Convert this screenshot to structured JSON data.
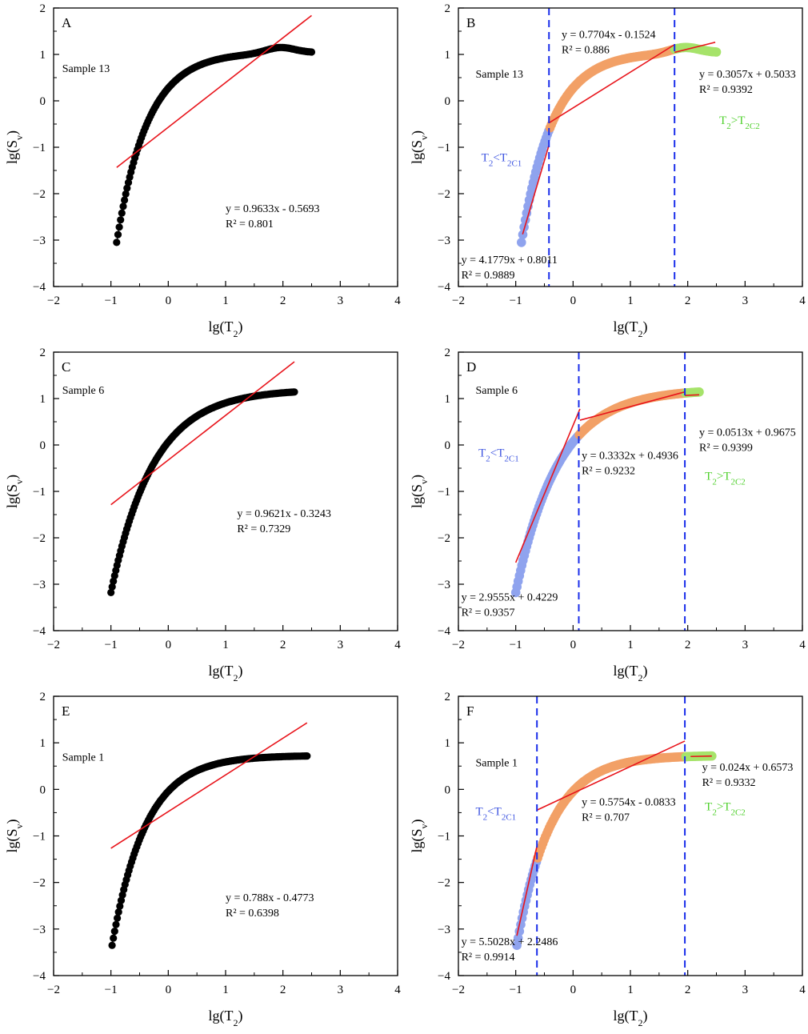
{
  "figure": {
    "panels": [
      "A",
      "B",
      "C",
      "D",
      "E",
      "F"
    ]
  },
  "colors": {
    "points_black": "#000000",
    "low_segment": "#8FA3EE",
    "mid_segment": "#F2A066",
    "high_segment": "#A6E36A",
    "fit_line": "#E8141B",
    "divider": "#1A2EEA",
    "label_low": "#3E55E0",
    "label_high": "#4FD02C"
  },
  "chart_data": [
    {
      "id": "A",
      "type": "scatter",
      "sample": "Sample 13",
      "xlabel": "lg(T2)",
      "ylabel": "lg(Sv)",
      "xlim": [
        -2,
        4
      ],
      "ylim": [
        -4,
        2
      ],
      "xticks": [
        "−2",
        "−1",
        "0",
        "1",
        "2",
        "3",
        "4"
      ],
      "yticks": [
        "−4",
        "−3",
        "−2",
        "−1",
        "0",
        "1",
        "2"
      ],
      "curve": {
        "x0": -0.9,
        "y0": -3.05,
        "x1": 2.5,
        "k": 1.85,
        "a": 0.35,
        "bump_center": 1.95,
        "bump_height": 0.12
      },
      "fits": [
        {
          "slope": 0.9633,
          "intercept": -0.5693,
          "x_from": -0.9,
          "x_to": 2.5,
          "equation": "y = 0.9633x - 0.5693",
          "r2": "R² = 0.801"
        }
      ],
      "dividers": []
    },
    {
      "id": "B",
      "type": "scatter",
      "sample": "Sample 13",
      "xlabel": "lg(T2)",
      "ylabel": "lg(Sv)",
      "xlim": [
        -2,
        4
      ],
      "ylim": [
        -4,
        2
      ],
      "xticks": [
        "−2",
        "−1",
        "0",
        "1",
        "2",
        "3",
        "4"
      ],
      "yticks": [
        "−4",
        "−3",
        "−2",
        "−1",
        "0",
        "1",
        "2"
      ],
      "curve": {
        "x0": -0.9,
        "y0": -3.05,
        "x1": 2.5,
        "k": 1.85,
        "a": 0.35,
        "bump_center": 1.95,
        "bump_height": 0.12
      },
      "dividers": [
        -0.42,
        1.77
      ],
      "regions": {
        "low": "T2<T2C1",
        "high": "T2>T2C2"
      },
      "fits": [
        {
          "slope": 4.1779,
          "intercept": 0.8011,
          "x_from": -0.88,
          "x_to": -0.42,
          "equation": "y = 4.1779x + 0.8011",
          "r2": "R² = 0.9889"
        },
        {
          "slope": 0.7704,
          "intercept": -0.1524,
          "x_from": -0.42,
          "x_to": 1.77,
          "equation": "y = 0.7704x - 0.1524",
          "r2": "R² = 0.886"
        },
        {
          "slope": 0.3057,
          "intercept": 0.5033,
          "x_from": 1.77,
          "x_to": 2.48,
          "equation": "y = 0.3057x + 0.5033",
          "r2": "R² = 0.9392"
        }
      ]
    },
    {
      "id": "C",
      "type": "scatter",
      "sample": "Sample 6",
      "xlabel": "lg(T2)",
      "ylabel": "lg(Sv)",
      "xlim": [
        -2,
        4
      ],
      "ylim": [
        -4,
        2
      ],
      "xticks": [
        "−2",
        "−1",
        "0",
        "1",
        "2",
        "3",
        "4"
      ],
      "yticks": [
        "−4",
        "−3",
        "−2",
        "−1",
        "0",
        "1",
        "2"
      ],
      "curve": {
        "x0": -1.0,
        "y0": -3.18,
        "x1": 2.2,
        "k": 1.35,
        "a": 0.5,
        "bump_center": 2.0,
        "bump_height": 0.0
      },
      "fits": [
        {
          "slope": 0.9621,
          "intercept": -0.3243,
          "x_from": -1.0,
          "x_to": 2.2,
          "equation": "y = 0.9621x - 0.3243",
          "r2": "R² = 0.7329"
        }
      ],
      "dividers": []
    },
    {
      "id": "D",
      "type": "scatter",
      "sample": "Sample 6",
      "xlabel": "lg(T2)",
      "ylabel": "lg(Sv)",
      "xlim": [
        -2,
        4
      ],
      "ylim": [
        -4,
        2
      ],
      "xticks": [
        "−2",
        "−1",
        "0",
        "1",
        "2",
        "3",
        "4"
      ],
      "yticks": [
        "−4",
        "−3",
        "−2",
        "−1",
        "0",
        "1",
        "2"
      ],
      "curve": {
        "x0": -1.0,
        "y0": -3.18,
        "x1": 2.2,
        "k": 1.35,
        "a": 0.5,
        "bump_center": 2.0,
        "bump_height": 0.0
      },
      "dividers": [
        0.1,
        1.95
      ],
      "regions": {
        "low": "T2<T2C1",
        "high": "T2>T2C2"
      },
      "fits": [
        {
          "slope": 2.9555,
          "intercept": 0.4229,
          "x_from": -1.0,
          "x_to": 0.12,
          "equation": "y = 2.9555x + 0.4229",
          "r2": "R² = 0.9357"
        },
        {
          "slope": 0.3332,
          "intercept": 0.4936,
          "x_from": 0.12,
          "x_to": 1.95,
          "equation": "y = 0.3332x + 0.4936",
          "r2": "R² = 0.9232"
        },
        {
          "slope": 0.0513,
          "intercept": 0.9675,
          "x_from": 1.95,
          "x_to": 2.2,
          "equation": "y = 0.0513x + 0.9675",
          "r2": "R² = 0.9399"
        }
      ]
    },
    {
      "id": "E",
      "type": "scatter",
      "sample": "Sample 1",
      "xlabel": "lg(T2)",
      "ylabel": "lg(Sv)",
      "xlim": [
        -2,
        4
      ],
      "ylim": [
        -4,
        2
      ],
      "xticks": [
        "−2",
        "−1",
        "0",
        "1",
        "2",
        "3",
        "4"
      ],
      "yticks": [
        "−4",
        "−3",
        "−2",
        "−1",
        "0",
        "1",
        "2"
      ],
      "curve": {
        "x0": -0.98,
        "y0": -3.35,
        "x1": 2.42,
        "k": 1.7,
        "a": 0.03,
        "bump_center": 2.0,
        "bump_height": 0.0
      },
      "fits": [
        {
          "slope": 0.788,
          "intercept": -0.4773,
          "x_from": -1.0,
          "x_to": 2.42,
          "equation": "y = 0.788x - 0.4773",
          "r2": "R² = 0.6398"
        }
      ],
      "dividers": []
    },
    {
      "id": "F",
      "type": "scatter",
      "sample": "Sample 1",
      "xlabel": "lg(T2)",
      "ylabel": "lg(Sv)",
      "xlim": [
        -2,
        4
      ],
      "ylim": [
        -4,
        2
      ],
      "xticks": [
        "−2",
        "−1",
        "0",
        "1",
        "2",
        "3",
        "4"
      ],
      "yticks": [
        "−4",
        "−3",
        "−2",
        "−1",
        "0",
        "1",
        "2"
      ],
      "curve": {
        "x0": -0.98,
        "y0": -3.35,
        "x1": 2.42,
        "k": 1.7,
        "a": 0.03,
        "bump_center": 2.0,
        "bump_height": 0.0
      },
      "dividers": [
        -0.63,
        1.95
      ],
      "regions": {
        "low": "T2<T2C1",
        "high": "T2>T2C2"
      },
      "fits": [
        {
          "slope": 5.5028,
          "intercept": 2.2486,
          "x_from": -0.98,
          "x_to": -0.63,
          "equation": "y = 5.5028x + 2.2486",
          "r2": "R² = 0.9914"
        },
        {
          "slope": 0.5754,
          "intercept": -0.0833,
          "x_from": -0.63,
          "x_to": 1.95,
          "equation": "y = 0.5754x - 0.0833",
          "r2": "R² = 0.707"
        },
        {
          "slope": 0.024,
          "intercept": 0.6573,
          "x_from": 2.05,
          "x_to": 2.42,
          "equation": "y = 0.024x + 0.6573",
          "r2": "R² = 0.9332"
        }
      ]
    }
  ]
}
